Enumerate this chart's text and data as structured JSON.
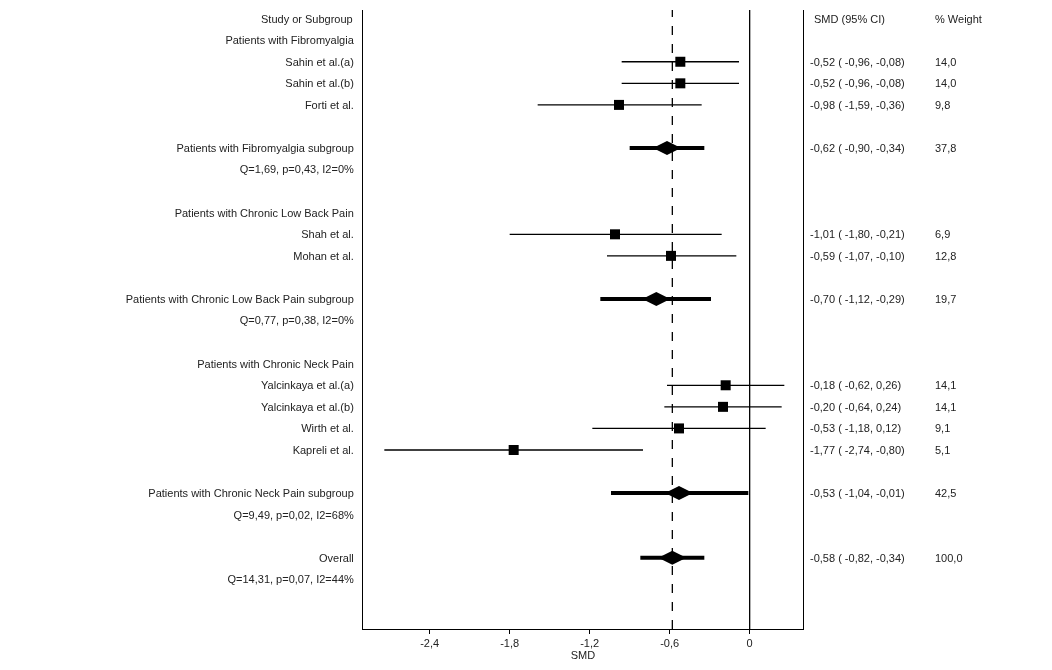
{
  "chart_data": {
    "type": "scatter",
    "orientation": "horizontal",
    "xlabel": "SMD",
    "annotations": [
      "Study or Subgroup",
      "SMD (95% CI)",
      "% Weight"
    ],
    "categories": [
      "Patients with Fibromyalgia",
      "Sahin et al.(a)",
      "Sahin et al.(b)",
      "Forti et al.",
      null,
      "Patients with Fibromyalgia subgroup",
      "Q=1,69, p=0,43, I2=0%",
      null,
      "Patients with Chronic Low Back Pain",
      "Shah et al.",
      "Mohan et al.",
      null,
      "Patients with Chronic Low Back Pain subgroup",
      "Q=0,77, p=0,38, I2=0%",
      null,
      "Patients with Chronic Neck Pain",
      "Yalcinkaya et al.(a)",
      "Yalcinkaya et al.(b)",
      "Wirth et al.",
      "Kapreli et al.",
      null,
      "Patients with Chronic Neck Pain subgroup",
      "Q=9,49, p=0,02, I2=68%",
      null,
      "Overall",
      "Q=14,31, p=0,07, I2=44%"
    ],
    "series": [
      {
        "color": "#000000",
        "marker": "square",
        "values": [
          null,
          -0.52,
          -0.52,
          -0.98,
          null,
          null,
          null,
          null,
          null,
          -1.01,
          -0.59,
          null,
          null,
          null,
          null,
          null,
          -0.18,
          -0.2,
          -0.53,
          -1.77,
          null,
          null,
          null,
          null,
          null,
          null
        ],
        "errors": [
          null,
          [
            -0.96,
            -0.08
          ],
          [
            -0.96,
            -0.08
          ],
          [
            -1.59,
            -0.36
          ],
          null,
          null,
          null,
          null,
          null,
          [
            -1.8,
            -0.21
          ],
          [
            -1.07,
            -0.1
          ],
          null,
          null,
          null,
          null,
          null,
          [
            -0.62,
            0.26
          ],
          [
            -0.64,
            0.24
          ],
          [
            -1.18,
            0.12
          ],
          [
            -2.74,
            -0.8
          ],
          null,
          null,
          null,
          null,
          null,
          null
        ],
        "value_labels": [
          null,
          "-0,52 ( -0,96, -0,08) 14,0",
          "-0,52 ( -0,96, -0,08) 14,0",
          "-0,98 ( -1,59, -0,36) 9,8",
          null,
          null,
          null,
          null,
          null,
          "-1,01 ( -1,80, -0,21) 6,9",
          "-0,59 ( -1,07, -0,10) 12,8",
          null,
          null,
          null,
          null,
          null,
          "-0,18 ( -0,62, 0,26) 14,1",
          "-0,20 ( -0,64, 0,24) 14,1",
          "-0,53 ( -1,18, 0,12) 9,1",
          "-1,77 ( -2,74, -0,80) 5,1",
          null,
          null,
          null,
          null,
          null,
          null
        ]
      },
      {
        "color": "#000000",
        "marker": "diamond",
        "values": [
          null,
          null,
          null,
          null,
          null,
          -0.62,
          null,
          null,
          null,
          null,
          null,
          null,
          -0.7,
          null,
          null,
          null,
          null,
          null,
          null,
          null,
          null,
          -0.53,
          null,
          null,
          -0.58,
          null
        ],
        "errors": [
          null,
          null,
          null,
          null,
          null,
          [
            -0.9,
            -0.34
          ],
          null,
          null,
          null,
          null,
          null,
          null,
          [
            -1.12,
            -0.29
          ],
          null,
          null,
          null,
          null,
          null,
          null,
          null,
          null,
          [
            -1.04,
            -0.01
          ],
          null,
          null,
          [
            -0.82,
            -0.34
          ],
          null
        ],
        "value_labels": [
          null,
          null,
          null,
          null,
          null,
          "-0,62 ( -0,90, -0,34) 37,8",
          null,
          null,
          null,
          null,
          null,
          null,
          "-0,70 ( -1,12, -0,29) 19,7",
          null,
          null,
          null,
          null,
          null,
          null,
          null,
          null,
          "-0,53 ( -1,04, -0,01) 42,5",
          null,
          null,
          "-0,58 ( -0,82, -0,34) 100,0",
          null
        ]
      }
    ],
    "xlim": [
      -2.9,
      0.4
    ],
    "xticks": [
      {
        "value": -2.4,
        "label": "-2,4"
      },
      {
        "value": -1.8,
        "label": "-1,8"
      },
      {
        "value": -1.2,
        "label": "-1,2"
      },
      {
        "value": -0.6,
        "label": "-0,6"
      },
      {
        "value": 0,
        "label": "0"
      }
    ],
    "ref_lines": [
      {
        "axis": "x",
        "value": -0.58,
        "line_style": "dashed",
        "color": "#000000"
      },
      {
        "axis": "x",
        "value": 0,
        "line_style": "solid",
        "color": "#000000"
      }
    ],
    "tick_labels": "xy"
  }
}
